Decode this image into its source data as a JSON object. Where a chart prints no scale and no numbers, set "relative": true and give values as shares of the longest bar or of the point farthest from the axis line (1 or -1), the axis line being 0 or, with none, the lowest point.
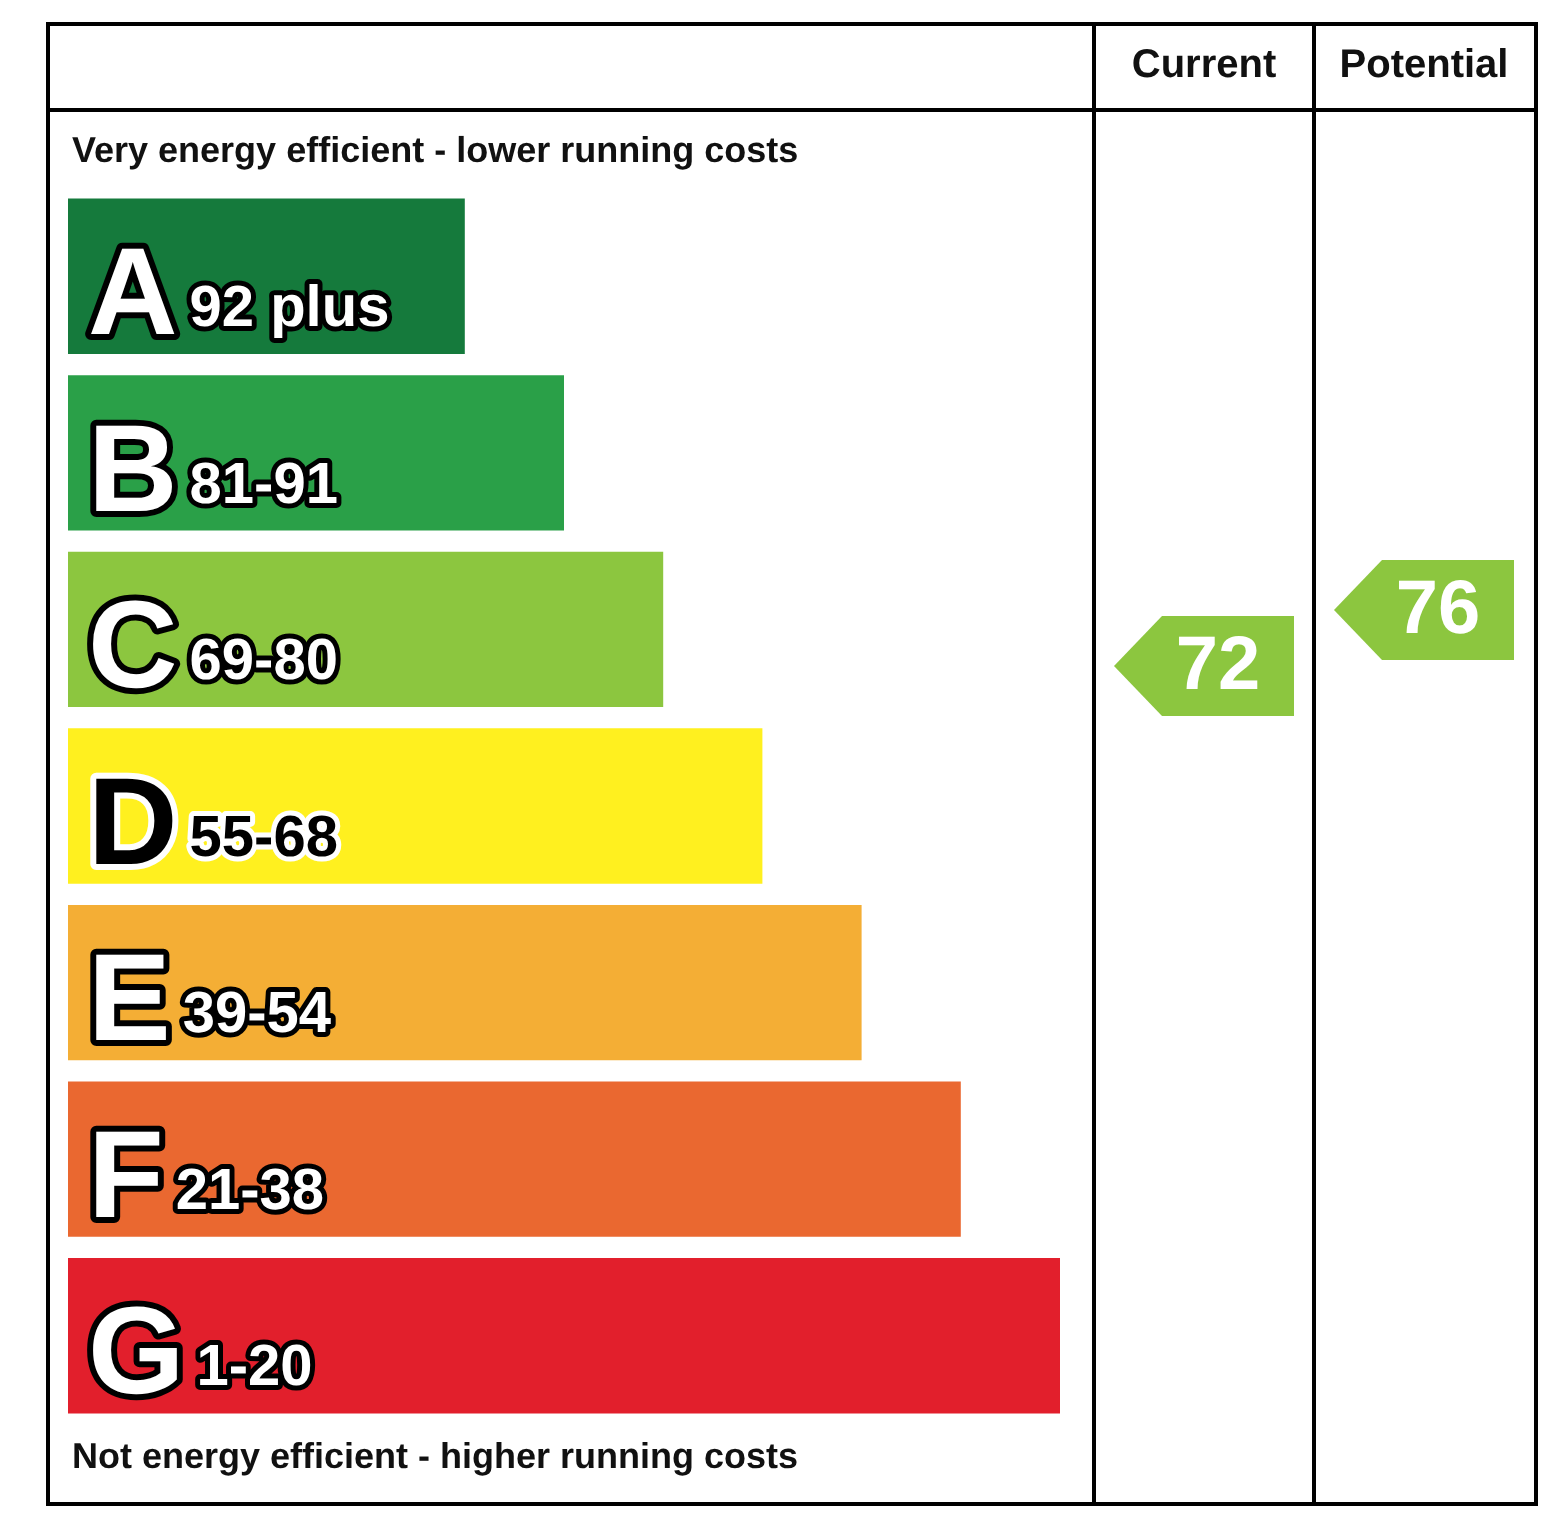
{
  "chart_data": {
    "type": "bar",
    "orientation": "horizontal",
    "relative": true,
    "categories": [
      "A",
      "B",
      "C",
      "D",
      "E",
      "F",
      "G"
    ],
    "values": [
      0.4,
      0.5,
      0.6,
      0.7,
      0.8,
      0.9,
      1
    ],
    "colors": [
      "#157a3c",
      "#2aa048",
      "#8cc63f",
      "#fff01f",
      "#f4ae35",
      "#ea6830",
      "#e21f2c"
    ],
    "annotations": [
      "Very energy efficient - lower running costs",
      "Not energy efficient - higher running costs",
      "Current",
      "Potential",
      "72",
      "76",
      "92 plus",
      "81-91",
      "69-80",
      "55-68",
      "39-54",
      "21-38",
      "1-20"
    ]
  }
}
